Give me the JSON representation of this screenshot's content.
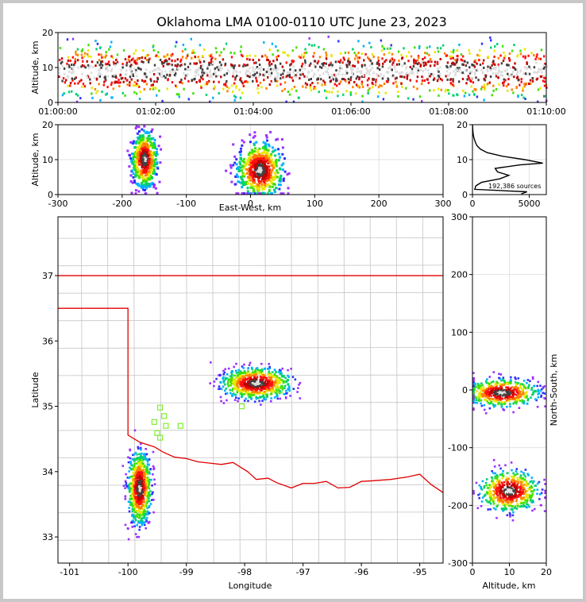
{
  "chart_data": {
    "type": "heatmap",
    "title": "Oklahoma LMA 0100-0110 UTC June 23, 2023",
    "source_count_label": "192,386 sources",
    "colors": {
      "density": [
        "#9b30ff",
        "#3030ff",
        "#00b0ff",
        "#00d070",
        "#40e000",
        "#e8e800",
        "#ff8000",
        "#ff1010",
        "#c00000",
        "#404040",
        "#dddddd"
      ],
      "state_border": "#e00000",
      "county_lines": "#c4c4c4",
      "stations": "#80ee30"
    },
    "time_height": {
      "ylabel": "Altitude, km",
      "yticks": [
        0,
        10,
        20
      ],
      "ylim": [
        0,
        20
      ],
      "xticks": [
        "01:00:00",
        "01:02:00",
        "01:04:00",
        "01:06:00",
        "01:08:00",
        "01:10:00"
      ],
      "xlim_minutes": [
        0,
        10
      ],
      "sources": [
        {
          "alt_mean_km": 9,
          "alt_spread_km": 3.5
        }
      ]
    },
    "east_west_height": {
      "xlabel": "East-West, km",
      "ylabel": "Altitude, km",
      "xticks": [
        -300,
        -200,
        -100,
        0,
        100,
        200,
        300
      ],
      "xlim": [
        -300,
        300
      ],
      "yticks": [
        0,
        10,
        20
      ],
      "ylim": [
        0,
        20
      ],
      "cells": [
        {
          "x_km": -165,
          "alt_km": 10,
          "x_sd": 10,
          "alt_sd": 4
        },
        {
          "x_km": 15,
          "alt_km": 7,
          "x_sd": 18,
          "alt_sd": 4
        }
      ]
    },
    "altitude_histogram": {
      "xticks": [
        0,
        5000
      ],
      "xlim": [
        0,
        6500
      ],
      "yticks": [
        0,
        10,
        20
      ],
      "ylim": [
        0,
        20
      ],
      "profile": [
        [
          0.2,
          4300
        ],
        [
          0.8,
          4800
        ],
        [
          1.5,
          200
        ],
        [
          2.5,
          300
        ],
        [
          3.5,
          800
        ],
        [
          4.5,
          2400
        ],
        [
          5.5,
          3200
        ],
        [
          6.5,
          2200
        ],
        [
          7.5,
          2000
        ],
        [
          8.5,
          4200
        ],
        [
          9,
          6200
        ],
        [
          10,
          4600
        ],
        [
          11,
          2600
        ],
        [
          12,
          1300
        ],
        [
          13,
          700
        ],
        [
          14,
          400
        ],
        [
          15,
          250
        ],
        [
          16,
          150
        ],
        [
          17,
          80
        ],
        [
          18,
          40
        ],
        [
          19,
          20
        ],
        [
          20,
          10
        ]
      ]
    },
    "plan_view": {
      "xlabel": "Longitude",
      "ylabel": "Latitude",
      "xticks": [
        -101,
        -100,
        -99,
        -98,
        -97,
        -96,
        -95
      ],
      "xlim": [
        -101.2,
        -94.6
      ],
      "yticks": [
        33,
        34,
        35,
        36,
        37
      ],
      "ylim": [
        32.6,
        37.9
      ],
      "cells": [
        {
          "lon": -97.8,
          "lat": 35.35,
          "lon_sd": 0.3,
          "lat_sd": 0.12
        },
        {
          "lon": -99.8,
          "lat": 33.75,
          "lon_sd": 0.1,
          "lat_sd": 0.28
        }
      ],
      "stations": [
        [
          -99.45,
          34.98
        ],
        [
          -99.55,
          34.76
        ],
        [
          -99.38,
          34.85
        ],
        [
          -99.5,
          34.59
        ],
        [
          -99.35,
          34.7
        ],
        [
          -99.45,
          34.52
        ],
        [
          -99.1,
          34.7
        ],
        [
          -98.05,
          35.0
        ],
        [
          -97.4,
          35.24
        ]
      ],
      "border_north_lat": 37.0,
      "panhandle_lat": 36.5,
      "west_lon_panhandle": -103,
      "west_lon_main": -100.0,
      "red_river": [
        [
          -100.0,
          34.56
        ],
        [
          -99.8,
          34.45
        ],
        [
          -99.55,
          34.38
        ],
        [
          -99.4,
          34.3
        ],
        [
          -99.2,
          34.22
        ],
        [
          -99.0,
          34.2
        ],
        [
          -98.8,
          34.15
        ],
        [
          -98.6,
          34.13
        ],
        [
          -98.4,
          34.11
        ],
        [
          -98.2,
          34.14
        ],
        [
          -97.95,
          34.0
        ],
        [
          -97.8,
          33.88
        ],
        [
          -97.6,
          33.9
        ],
        [
          -97.45,
          33.83
        ],
        [
          -97.2,
          33.75
        ],
        [
          -97.0,
          33.82
        ],
        [
          -96.8,
          33.82
        ],
        [
          -96.6,
          33.85
        ],
        [
          -96.4,
          33.75
        ],
        [
          -96.2,
          33.76
        ],
        [
          -96.0,
          33.85
        ],
        [
          -95.8,
          33.86
        ],
        [
          -95.5,
          33.88
        ],
        [
          -95.2,
          33.92
        ],
        [
          -95.0,
          33.96
        ],
        [
          -94.8,
          33.8
        ],
        [
          -94.6,
          33.68
        ]
      ]
    },
    "ns_height": {
      "xlabel": "Altitude, km",
      "ylabel": "North-South, km",
      "xticks": [
        0,
        10,
        20
      ],
      "xlim": [
        0,
        20
      ],
      "yticks": [
        -300,
        -200,
        -100,
        0,
        100,
        200,
        300
      ],
      "ylim": [
        -300,
        300
      ],
      "cells": [
        {
          "alt_km": 8,
          "y_km": -5,
          "alt_sd": 5,
          "y_sd": 12
        },
        {
          "alt_km": 10,
          "y_km": -175,
          "alt_sd": 4,
          "y_sd": 18
        }
      ]
    }
  }
}
